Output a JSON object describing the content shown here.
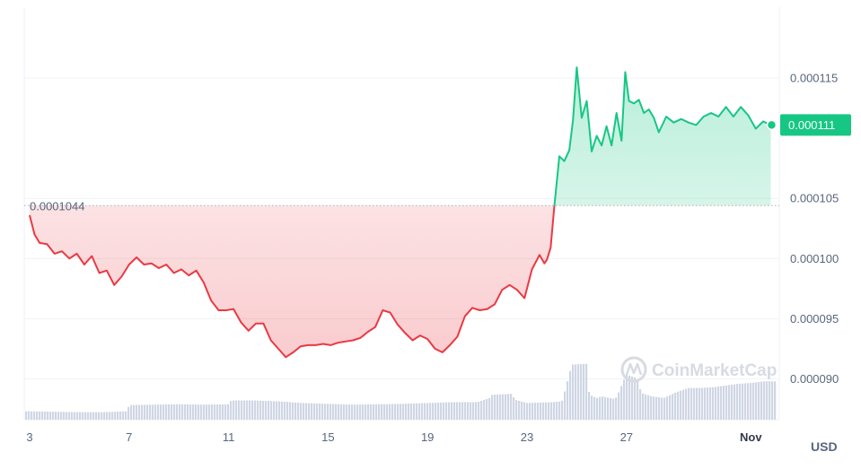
{
  "chart_data": {
    "type": "line",
    "unit_label": "USD",
    "watermark": "CoinMarketCap",
    "reference_value": 0.0001044,
    "reference_label": "0.0001044",
    "current_value_label": "0.000111",
    "ylim": [
      8.66e-05,
      0.0001209
    ],
    "yticks": [
      {
        "value": 0.000115,
        "label": "0.000115"
      },
      {
        "value": 0.000105,
        "label": "0.000105"
      },
      {
        "value": 0.0001,
        "label": "0.000100"
      },
      {
        "value": 9.5e-05,
        "label": "0.000095"
      },
      {
        "value": 9e-05,
        "label": "0.000090"
      }
    ],
    "xlim": [
      3,
      34.2
    ],
    "xticks": [
      {
        "value": 3,
        "label": "3"
      },
      {
        "value": 7,
        "label": "7"
      },
      {
        "value": 11,
        "label": "11"
      },
      {
        "value": 15,
        "label": "15"
      },
      {
        "value": 19,
        "label": "19"
      },
      {
        "value": 23,
        "label": "23"
      },
      {
        "value": 27,
        "label": "27"
      },
      {
        "value": 32,
        "label": "Nov"
      }
    ],
    "series": [
      {
        "x": [
          3.0,
          3.2,
          3.4,
          3.7,
          4.0,
          4.3,
          4.6,
          4.9,
          5.2,
          5.5,
          5.8,
          6.1,
          6.4,
          6.7,
          7.0,
          7.3,
          7.6,
          7.9,
          8.2,
          8.5,
          8.8,
          9.1,
          9.4,
          9.7,
          10.0,
          10.3,
          10.6,
          10.9,
          11.2,
          11.5,
          11.8,
          12.1,
          12.4,
          12.7,
          13.0,
          13.3,
          13.6,
          13.9,
          14.2,
          14.5,
          14.8,
          15.1,
          15.4,
          15.7,
          16.0,
          16.3,
          16.6,
          16.9,
          17.2,
          17.5,
          17.8,
          18.1,
          18.4,
          18.7,
          19.0,
          19.3,
          19.6,
          19.9,
          20.2,
          20.5,
          20.8,
          21.1,
          21.4,
          21.7,
          22.0,
          22.3,
          22.6,
          22.9,
          23.2,
          23.5,
          23.7,
          23.8,
          23.95,
          24.1,
          24.3,
          24.5,
          24.7,
          24.85,
          25.0,
          25.2,
          25.4,
          25.6,
          25.8,
          26.0,
          26.2,
          26.4,
          26.6,
          26.8,
          26.95,
          27.1,
          27.3,
          27.5,
          27.7,
          27.9,
          28.1,
          28.3,
          28.6,
          28.9,
          29.2,
          29.5,
          29.8,
          30.1,
          30.4,
          30.7,
          31.0,
          31.3,
          31.6,
          31.9,
          32.2,
          32.5,
          32.8
        ],
        "values": [
          0.0001036,
          0.000102,
          0.0001013,
          0.0001012,
          0.0001004,
          0.0001006,
          0.0001,
          0.0001004,
          9.95e-05,
          0.0001002,
          9.88e-05,
          9.9e-05,
          9.78e-05,
          9.85e-05,
          9.95e-05,
          0.0001001,
          9.95e-05,
          9.96e-05,
          9.92e-05,
          9.95e-05,
          9.88e-05,
          9.91e-05,
          9.86e-05,
          9.9e-05,
          9.8e-05,
          9.65e-05,
          9.57e-05,
          9.57e-05,
          9.58e-05,
          9.47e-05,
          9.4e-05,
          9.46e-05,
          9.46e-05,
          9.32e-05,
          9.25e-05,
          9.18e-05,
          9.22e-05,
          9.27e-05,
          9.28e-05,
          9.28e-05,
          9.29e-05,
          9.28e-05,
          9.3e-05,
          9.31e-05,
          9.32e-05,
          9.34e-05,
          9.39e-05,
          9.43e-05,
          9.57e-05,
          9.55e-05,
          9.45e-05,
          9.38e-05,
          9.32e-05,
          9.36e-05,
          9.33e-05,
          9.25e-05,
          9.22e-05,
          9.28e-05,
          9.35e-05,
          9.52e-05,
          9.59e-05,
          9.57e-05,
          9.58e-05,
          9.62e-05,
          9.74e-05,
          9.78e-05,
          9.74e-05,
          9.67e-05,
          9.91e-05,
          0.0001003,
          9.96e-05,
          9.99e-05,
          0.0001009,
          0.0001044,
          0.0001085,
          0.0001081,
          0.000109,
          0.0001115,
          0.0001159,
          0.0001117,
          0.0001131,
          0.0001089,
          0.0001102,
          0.0001094,
          0.000111,
          0.0001094,
          0.0001121,
          0.0001098,
          0.0001155,
          0.0001131,
          0.0001129,
          0.0001132,
          0.0001121,
          0.0001124,
          0.0001117,
          0.0001105,
          0.0001118,
          0.0001113,
          0.0001116,
          0.0001113,
          0.0001111,
          0.0001118,
          0.0001121,
          0.0001118,
          0.0001126,
          0.0001118,
          0.0001126,
          0.0001119,
          0.0001108,
          0.0001114,
          0.0001111
        ]
      }
    ],
    "volume": {
      "x": [
        3.0,
        4.0,
        5.0,
        6.0,
        6.9,
        7.0,
        8.0,
        9.0,
        10.0,
        11.0,
        11.1,
        12.0,
        13.0,
        14.0,
        15.0,
        16.0,
        17.0,
        18.0,
        19.0,
        20.0,
        21.0,
        21.5,
        21.6,
        22.4,
        22.5,
        23.0,
        24.0,
        24.4,
        24.5,
        24.8,
        25.4,
        25.5,
        25.8,
        26.0,
        26.5,
        26.6,
        26.9,
        27.0,
        27.4,
        27.6,
        28.0,
        28.5,
        29.0,
        29.5,
        30.0,
        30.5,
        31.0,
        31.5,
        32.0,
        32.5,
        32.8
      ],
      "values": [
        1,
        0.95,
        0.9,
        0.9,
        1,
        1.75,
        1.8,
        1.85,
        1.8,
        1.85,
        2.3,
        2.3,
        2.2,
        2.0,
        1.9,
        1.8,
        1.85,
        1.9,
        2.0,
        2.1,
        2.1,
        2.6,
        3.0,
        3.1,
        2.4,
        2.0,
        2.1,
        2.2,
        3.2,
        6.6,
        6.7,
        3.0,
        2.6,
        2.8,
        2.5,
        2.7,
        4.8,
        5.4,
        5.0,
        3.2,
        2.8,
        2.6,
        3.3,
        3.8,
        3.8,
        3.9,
        4.1,
        4.3,
        4.4,
        4.6,
        4.6
      ]
    }
  }
}
